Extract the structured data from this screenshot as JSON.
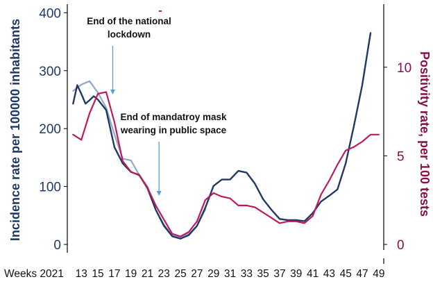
{
  "chart_data": {
    "type": "line",
    "title": "",
    "xlabel": "Weeks 2021",
    "ylabel_left": "Incidence rate per 100000 inhabitants",
    "ylabel_right": "Positivity rate, per 100 tests",
    "x_ticks": [
      "13",
      "15",
      "17",
      "19",
      "21",
      "23",
      "25",
      "27",
      "29",
      "31",
      "33",
      "35",
      "37",
      "39",
      "41",
      "43",
      "45",
      "47",
      "49"
    ],
    "xlim": [
      11.3,
      49.6
    ],
    "ylim_left": [
      0,
      410
    ],
    "y_ticks_left": [
      "0",
      "100",
      "200",
      "300",
      "400"
    ],
    "ylim_right": [
      0,
      13.4
    ],
    "y_ticks_right": [
      "0",
      "5",
      "10"
    ],
    "grid": false,
    "colors": {
      "incidence": "#1f3864",
      "incidence_alt": "#8ea9c8",
      "positivity": "#c2185b",
      "arrow": "#5b9bd5",
      "right_axis": "#8b0d4a"
    },
    "series": [
      {
        "axis": "left",
        "x": [
          12,
          12.5,
          13,
          13.5,
          14,
          14.5,
          15,
          16,
          17,
          18,
          19,
          20,
          21,
          22,
          23,
          24,
          25,
          26,
          27,
          28,
          29,
          30,
          31,
          32,
          33,
          34,
          35,
          36,
          37,
          38,
          39,
          40,
          41,
          42,
          43,
          44,
          45,
          46,
          47,
          48
        ],
        "values": [
          243,
          275,
          260,
          243,
          249,
          256,
          250,
          232,
          168,
          140,
          125,
          120,
          97,
          60,
          32,
          14,
          10,
          16,
          32,
          63,
          101,
          112,
          112,
          127,
          124,
          105,
          78,
          60,
          44,
          42,
          42,
          40,
          54,
          74,
          84,
          95,
          140,
          205,
          275,
          365
        ]
      },
      {
        "axis": "left",
        "x": [
          12,
          13,
          14,
          15,
          16,
          17,
          18,
          19,
          20,
          21,
          22,
          23,
          24,
          25,
          26,
          27,
          28
        ],
        "values": [
          265,
          276,
          282,
          262,
          236,
          190,
          148,
          145,
          120,
          100,
          60,
          34,
          16,
          12,
          18,
          32,
          60
        ]
      },
      {
        "axis": "right",
        "x": [
          12,
          13,
          14,
          15,
          16,
          17,
          18,
          19,
          20,
          21,
          22,
          23,
          24,
          25,
          26,
          27,
          28,
          29,
          30,
          31,
          32,
          33,
          34,
          35,
          36,
          37,
          38,
          39,
          40,
          41,
          42,
          43,
          44,
          45,
          46,
          47,
          48,
          49
        ],
        "values": [
          6.2,
          5.9,
          7.4,
          8.5,
          8.6,
          6.9,
          4.7,
          4.1,
          3.9,
          3.2,
          2.2,
          1.4,
          0.6,
          0.45,
          0.7,
          1.3,
          2.5,
          2.9,
          2.7,
          2.6,
          2.2,
          2.2,
          2.1,
          1.8,
          1.5,
          1.2,
          1.3,
          1.3,
          1.2,
          1.6,
          2.8,
          3.6,
          4.5,
          5.3,
          5.5,
          5.8,
          6.2,
          6.2
        ]
      }
    ],
    "annotations": [
      {
        "lines": [
          "End of the national",
          "lockdown"
        ],
        "arrow_to_week": 16.8
      },
      {
        "lines": [
          "End of mandatroy mask",
          "wearing in public space"
        ],
        "arrow_to_week": 22.4
      }
    ]
  }
}
